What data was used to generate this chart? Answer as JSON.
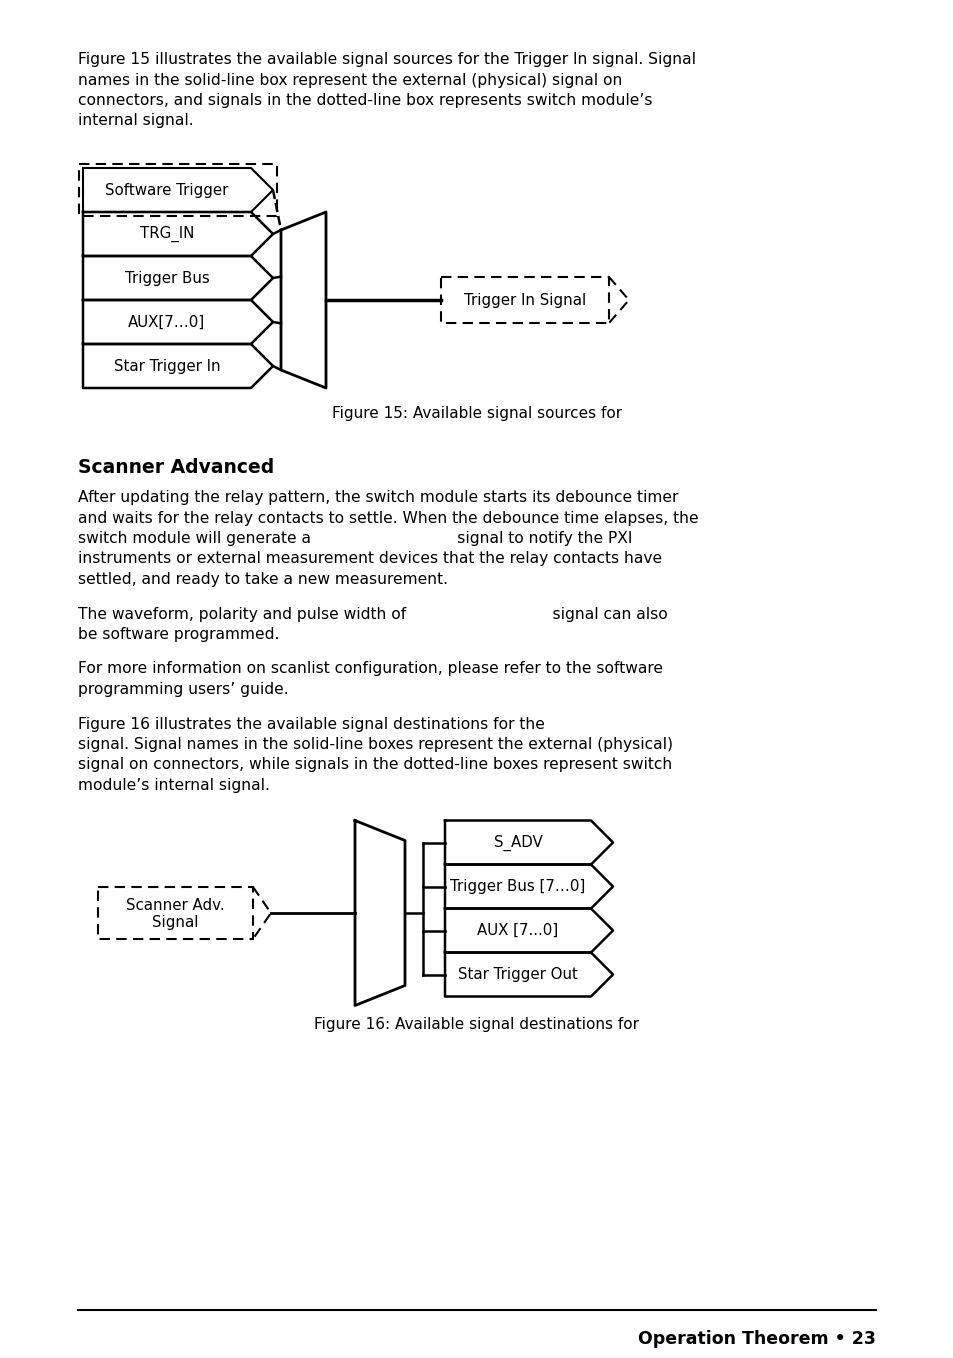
{
  "bg_color": "#ffffff",
  "text_color": "#000000",
  "fig15_caption": "Figure 15: Available signal sources for",
  "fig15_inputs": [
    "Software Trigger",
    "TRG_IN",
    "Trigger Bus",
    "AUX[7…0]",
    "Star Trigger In"
  ],
  "fig15_output": "Trigger In Signal",
  "section_title": "Scanner Advanced",
  "fig16_caption": "Figure 16: Available signal destinations for",
  "fig16_input_line1": "Scanner Adv.",
  "fig16_input_line2": "Signal",
  "fig16_outputs": [
    "S_ADV",
    "Trigger Bus [7…0]",
    "AUX [7...0]",
    "Star Trigger Out"
  ],
  "footer_text": "Operation Theorem • 23",
  "para1_lines": [
    "Figure 15 illustrates the available signal sources for the Trigger In signal. Signal",
    "names in the solid-line box represent the external (physical) signal on",
    "connectors, and signals in the dotted-line box represents switch module’s",
    "internal signal."
  ],
  "para2_lines": [
    "After updating the relay pattern, the switch module starts its debounce timer",
    "and waits for the relay contacts to settle. When the debounce time elapses, the",
    "switch module will generate a                              signal to notify the PXI",
    "instruments or external measurement devices that the relay contacts have",
    "settled, and ready to take a new measurement."
  ],
  "para3_lines": [
    "The waveform, polarity and pulse width of                              signal can also",
    "be software programmed."
  ],
  "para4_lines": [
    "For more information on scanlist configuration, please refer to the software",
    "programming users’ guide."
  ],
  "para5_lines": [
    "Figure 16 illustrates the available signal destinations for the",
    "signal. Signal names in the solid-line boxes represent the external (physical)",
    "signal on connectors, while signals in the dotted-line boxes represent switch",
    "module’s internal signal."
  ]
}
